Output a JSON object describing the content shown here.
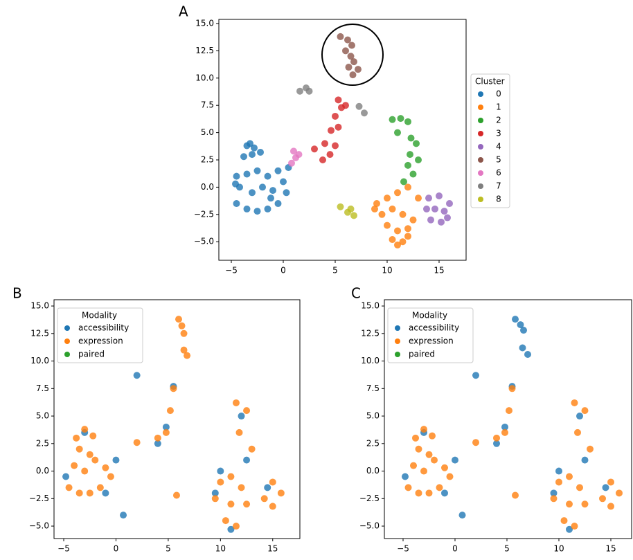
{
  "chart_data": [
    {
      "type": "scatter",
      "label": "A",
      "legend_title": "Cluster",
      "legend": "outside right",
      "xlim": [
        -6.2,
        17.6
      ],
      "ylim": [
        -6.7,
        15.38
      ],
      "xticks": [
        {
          "value": -5,
          "label": "−5"
        },
        0,
        5,
        10,
        15
      ],
      "yticks": [
        {
          "value": 15,
          "label": "15.0"
        },
        12.5,
        {
          "value": 10,
          "label": "10.0"
        },
        7.5,
        {
          "value": 5,
          "label": "5.0"
        },
        2.5,
        {
          "value": 0,
          "label": "0.0"
        },
        {
          "value": -2.5,
          "label": "−2.5"
        },
        {
          "value": -5,
          "label": "−5.0"
        }
      ],
      "series": [
        {
          "name": "0",
          "color": "#1f77b4",
          "x": [
            -4.5,
            -3.5,
            -2.5,
            -1.5,
            -0.5,
            0.3,
            -4.2,
            -3,
            -2,
            -1,
            0,
            -4.5,
            -3.5,
            -2.5,
            -1.5,
            -0.5,
            -3.8,
            -3,
            -2.2,
            -3.5,
            -2.8,
            -3.2,
            -1.2,
            0.5,
            -4.6
          ],
          "y": [
            -1.5,
            -2,
            -2.2,
            -2,
            -1.5,
            -0.5,
            0,
            -0.5,
            0,
            -0.3,
            0.5,
            1,
            1.2,
            1.5,
            1,
            1.5,
            2.8,
            3,
            3.2,
            3.8,
            3.6,
            4,
            -1,
            1.8,
            0.3
          ]
        },
        {
          "name": "1",
          "color": "#ff7f0e",
          "x": [
            9,
            10,
            11,
            12,
            13,
            9.5,
            10.5,
            11.5,
            12.5,
            10,
            11,
            12,
            10.5,
            11.5,
            11,
            12,
            8.8
          ],
          "y": [
            -1.5,
            -1,
            -0.5,
            0,
            -1,
            -2.5,
            -2,
            -2.5,
            -3,
            -3.5,
            -4,
            -3.8,
            -4.8,
            -5,
            -5.3,
            -4.5,
            -2
          ]
        },
        {
          "name": "2",
          "color": "#2ca02c",
          "x": [
            10.5,
            11.3,
            12,
            11,
            12.3,
            12.8,
            12.2,
            13,
            12,
            12.5,
            11.6
          ],
          "y": [
            6.2,
            6.3,
            6,
            5,
            4.5,
            4,
            3,
            2.5,
            2,
            1.2,
            0.5
          ]
        },
        {
          "name": "3",
          "color": "#d62728",
          "x": [
            3,
            3.8,
            4.5,
            5,
            4,
            4.6,
            5.3,
            5,
            5.6,
            5.3,
            6
          ],
          "y": [
            3.5,
            2.5,
            3,
            3.8,
            4,
            5.2,
            5.5,
            6.5,
            7.3,
            8,
            7.5
          ]
        },
        {
          "name": "4",
          "color": "#9467bd",
          "x": [
            14,
            15,
            16,
            13.8,
            14.6,
            15.5,
            14.2,
            15.2,
            15.8
          ],
          "y": [
            -1,
            -0.8,
            -1.5,
            -2,
            -2,
            -2.2,
            -3,
            -3.2,
            -2.8
          ]
        },
        {
          "name": "5",
          "color": "#8c564b",
          "x": [
            5.5,
            6.2,
            6.6,
            6,
            6.5,
            6.3,
            6.8,
            7.2,
            6.7
          ],
          "y": [
            13.8,
            13.5,
            13,
            12.5,
            12,
            11,
            11.5,
            10.8,
            10.3
          ]
        },
        {
          "name": "6",
          "color": "#e377c2",
          "x": [
            0.8,
            1.2,
            1.5,
            1.0
          ],
          "y": [
            2.2,
            2.7,
            3,
            3.3
          ]
        },
        {
          "name": "7",
          "color": "#7f7f7f",
          "x": [
            1.6,
            2.2,
            2.5,
            7.3,
            7.8
          ],
          "y": [
            8.8,
            9.1,
            8.8,
            7.4,
            6.8
          ]
        },
        {
          "name": "8",
          "color": "#bcbd22",
          "x": [
            5.5,
            6.2,
            6.8,
            6.5
          ],
          "y": [
            -1.8,
            -2.3,
            -2.6,
            -2.0
          ]
        }
      ]
    },
    {
      "type": "scatter",
      "label": "B",
      "legend_title": "Modality",
      "legend": "upper left",
      "xlim": [
        -5.93,
        17.6
      ],
      "ylim": [
        -6.13,
        15.57
      ],
      "xticks": [
        {
          "value": -5,
          "label": "−5"
        },
        0,
        5,
        10,
        15
      ],
      "yticks": [
        {
          "value": 15,
          "label": "15.0"
        },
        12.5,
        {
          "value": 10,
          "label": "10.0"
        },
        7.5,
        {
          "value": 5,
          "label": "5.0"
        },
        2.5,
        {
          "value": 0,
          "label": "0.0"
        },
        {
          "value": -2.5,
          "label": "−2.5"
        },
        {
          "value": -5,
          "label": "−5.0"
        }
      ],
      "series": [
        {
          "name": "accessibility",
          "color": "#1f77b4",
          "x": [
            -4.8,
            -3,
            -1,
            0,
            4,
            4.8,
            11,
            12.5,
            10,
            14.5,
            2,
            0.7,
            12,
            5.5,
            9.5
          ],
          "y": [
            -0.5,
            3.5,
            -2,
            1,
            2.5,
            4,
            -5.3,
            1,
            0,
            -1.5,
            8.7,
            -4,
            5,
            7.7,
            -2
          ]
        },
        {
          "name": "expression",
          "color": "#ff7f0e",
          "x": [
            -4.5,
            -3.5,
            -2.5,
            -1.5,
            -0.5,
            -4,
            -3,
            -2,
            -1,
            -3.5,
            -2.5,
            -3,
            -3.8,
            -2.2,
            10,
            11,
            12,
            9.5,
            11,
            12.5,
            10.5,
            11.5,
            11.5,
            12.5,
            11.8,
            13,
            4,
            4.8,
            5.5,
            5.2,
            15,
            15.8,
            14.2,
            15,
            2,
            6,
            6.3,
            6.5,
            6.5,
            6.8,
            5.8
          ],
          "y": [
            -1.5,
            -2,
            -2,
            -1.5,
            -0.5,
            0.5,
            0,
            1,
            0.3,
            2,
            1.5,
            3.8,
            3,
            3.2,
            -1,
            -0.5,
            -1.5,
            -2.5,
            -3,
            -3,
            -4.5,
            -5,
            6.2,
            5.5,
            3.5,
            2,
            3,
            3.5,
            7.5,
            5.5,
            -1,
            -2,
            -2.5,
            -3.2,
            2.6,
            13.8,
            13.2,
            12.5,
            11,
            10.5,
            -2.2
          ]
        },
        {
          "name": "paired",
          "color": "#2ca02c",
          "x": [],
          "y": []
        }
      ]
    },
    {
      "type": "scatter",
      "label": "C",
      "legend_title": "Modality",
      "legend": "upper left",
      "xlim": [
        -6.8,
        17.0
      ],
      "ylim": [
        -6.13,
        15.57
      ],
      "xticks": [
        {
          "value": -5,
          "label": "−5"
        },
        0,
        5,
        10,
        15
      ],
      "yticks": [
        {
          "value": 15,
          "label": "15.0"
        },
        12.5,
        {
          "value": 10,
          "label": "10.0"
        },
        7.5,
        {
          "value": 5,
          "label": "5.0"
        },
        2.5,
        {
          "value": 0,
          "label": "0.0"
        },
        {
          "value": -2.5,
          "label": "−2.5"
        },
        {
          "value": -5,
          "label": "−5.0"
        }
      ],
      "series": [
        {
          "name": "accessibility",
          "color": "#1f77b4",
          "x": [
            -4.8,
            -3,
            -1,
            0,
            4,
            4.8,
            11,
            12.5,
            10,
            14.5,
            2,
            0.7,
            12,
            5.5,
            9.5,
            5.8,
            6.3,
            6.6,
            6.5,
            7
          ],
          "y": [
            -0.5,
            3.5,
            -2,
            1,
            2.5,
            4,
            -5.3,
            1,
            0,
            -1.5,
            8.7,
            -4,
            5,
            7.7,
            -2,
            13.8,
            13.3,
            12.8,
            11.2,
            10.6
          ]
        },
        {
          "name": "expression",
          "color": "#ff7f0e",
          "x": [
            -4.5,
            -3.5,
            -2.5,
            -1.5,
            -0.5,
            -4,
            -3,
            -2,
            -1,
            -3.5,
            -2.5,
            -3,
            -3.8,
            -2.2,
            10,
            11,
            12,
            9.5,
            11,
            12.5,
            10.5,
            11.5,
            11.5,
            12.5,
            11.8,
            13,
            4,
            4.8,
            5.5,
            5.2,
            15,
            15.8,
            14.2,
            15,
            2,
            5.8
          ],
          "y": [
            -1.5,
            -2,
            -2,
            -1.5,
            -0.5,
            0.5,
            0,
            1,
            0.3,
            2,
            1.5,
            3.8,
            3,
            3.2,
            -1,
            -0.5,
            -1.5,
            -2.5,
            -3,
            -3,
            -4.5,
            -5,
            6.2,
            5.5,
            3.5,
            2,
            3,
            3.5,
            7.5,
            5.5,
            -1,
            -2,
            -2.5,
            -3.2,
            2.6,
            -2.2
          ]
        },
        {
          "name": "paired",
          "color": "#2ca02c",
          "x": [],
          "y": []
        }
      ]
    }
  ]
}
